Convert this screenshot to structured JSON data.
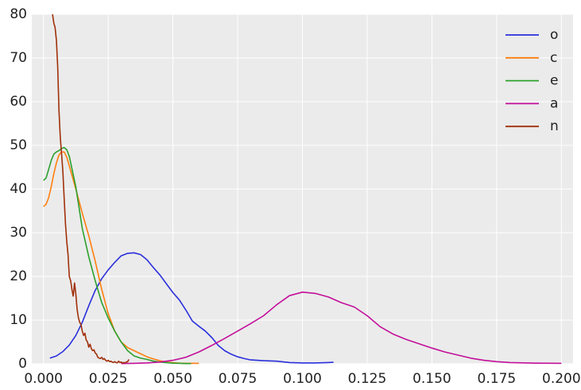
{
  "chart_data": {
    "type": "line",
    "title": "",
    "xlabel": "",
    "ylabel": "",
    "xlim": [
      -0.0045,
      0.2045
    ],
    "ylim": [
      0,
      80
    ],
    "xticks": [
      0.0,
      0.025,
      0.05,
      0.075,
      0.1,
      0.125,
      0.15,
      0.175,
      0.2
    ],
    "xtick_labels": [
      "0.000",
      "0.025",
      "0.050",
      "0.075",
      "0.100",
      "0.125",
      "0.150",
      "0.175",
      "0.200"
    ],
    "yticks": [
      0,
      10,
      20,
      30,
      40,
      50,
      60,
      70,
      80
    ],
    "ytick_labels": [
      "0",
      "10",
      "20",
      "30",
      "40",
      "50",
      "60",
      "70",
      "80"
    ],
    "grid": true,
    "legend_position": "top-right",
    "background": "#ebebeb",
    "series": [
      {
        "name": "o",
        "color": "#2a2fdc",
        "x": [
          0.0025,
          0.005,
          0.0075,
          0.01,
          0.0125,
          0.015,
          0.0175,
          0.02,
          0.0225,
          0.025,
          0.0275,
          0.03,
          0.0325,
          0.035,
          0.0375,
          0.04,
          0.0425,
          0.045,
          0.0475,
          0.05,
          0.0525,
          0.055,
          0.0575,
          0.06,
          0.0625,
          0.065,
          0.0675,
          0.07,
          0.0725,
          0.075,
          0.0775,
          0.08,
          0.085,
          0.09,
          0.095,
          0.1,
          0.105,
          0.11,
          0.112
        ],
        "y": [
          1.3,
          1.8,
          2.8,
          4.3,
          6.5,
          9.5,
          13.3,
          16.8,
          19.5,
          21.5,
          23.2,
          24.7,
          25.3,
          25.4,
          25.0,
          23.8,
          22.0,
          20.3,
          18.3,
          16.3,
          14.6,
          12.3,
          9.8,
          8.6,
          7.5,
          6.0,
          4.2,
          3.0,
          2.2,
          1.6,
          1.2,
          0.9,
          0.7,
          0.6,
          0.3,
          0.2,
          0.2,
          0.3,
          0.35
        ]
      },
      {
        "name": "c",
        "color": "#ff7f0e",
        "x": [
          0.0,
          0.001,
          0.002,
          0.003,
          0.004,
          0.005,
          0.006,
          0.007,
          0.008,
          0.009,
          0.01,
          0.0125,
          0.015,
          0.0175,
          0.02,
          0.0225,
          0.025,
          0.0275,
          0.03,
          0.0325,
          0.035,
          0.0375,
          0.04,
          0.0425,
          0.045,
          0.0475,
          0.05,
          0.0525,
          0.055,
          0.06
        ],
        "y": [
          36,
          36.5,
          38,
          40.5,
          43.5,
          46,
          47.8,
          48.5,
          48.5,
          47.3,
          45.3,
          40.0,
          34.5,
          29.3,
          23.5,
          17.0,
          11.5,
          7.5,
          5.0,
          3.7,
          3.0,
          2.3,
          1.6,
          1.1,
          0.7,
          0.4,
          0.25,
          0.15,
          0.1,
          0.1
        ]
      },
      {
        "name": "e",
        "color": "#2ca02c",
        "x": [
          0.0,
          0.001,
          0.002,
          0.003,
          0.004,
          0.005,
          0.006,
          0.007,
          0.008,
          0.009,
          0.01,
          0.0125,
          0.015,
          0.0175,
          0.02,
          0.0225,
          0.025,
          0.0275,
          0.03,
          0.0325,
          0.035,
          0.0375,
          0.04,
          0.0425,
          0.045,
          0.0475,
          0.05,
          0.0525,
          0.055,
          0.057
        ],
        "y": [
          42,
          42.5,
          44.5,
          46.5,
          48,
          48.5,
          48.8,
          49.3,
          49.5,
          49.0,
          47.5,
          40.5,
          31.0,
          24.5,
          19.0,
          14.0,
          10.5,
          7.5,
          5.0,
          3.0,
          1.8,
          1.3,
          1.0,
          0.6,
          0.4,
          0.25,
          0.15,
          0.1,
          0.05,
          0.05
        ]
      },
      {
        "name": "a",
        "color": "#c20f9a",
        "x": [
          0.03,
          0.035,
          0.04,
          0.045,
          0.05,
          0.055,
          0.06,
          0.065,
          0.07,
          0.075,
          0.08,
          0.085,
          0.09,
          0.095,
          0.1,
          0.105,
          0.11,
          0.115,
          0.12,
          0.125,
          0.13,
          0.135,
          0.14,
          0.145,
          0.15,
          0.155,
          0.16,
          0.165,
          0.17,
          0.175,
          0.18,
          0.19,
          0.2
        ],
        "y": [
          0.05,
          0.1,
          0.2,
          0.4,
          0.8,
          1.5,
          2.7,
          4.2,
          5.8,
          7.5,
          9.2,
          11.0,
          13.5,
          15.6,
          16.4,
          16.1,
          15.3,
          14.0,
          13.0,
          11.0,
          8.5,
          6.8,
          5.6,
          4.6,
          3.6,
          2.7,
          2.0,
          1.3,
          0.8,
          0.5,
          0.3,
          0.15,
          0.1
        ]
      },
      {
        "name": "n",
        "color": "#a0300a",
        "x": [
          0.0035,
          0.004,
          0.0045,
          0.005,
          0.0055,
          0.006,
          0.0065,
          0.007,
          0.0075,
          0.008,
          0.0085,
          0.009,
          0.0095,
          0.01,
          0.0105,
          0.011,
          0.0115,
          0.012,
          0.0125,
          0.013,
          0.0135,
          0.014,
          0.0145,
          0.015,
          0.0155,
          0.016,
          0.0165,
          0.017,
          0.0175,
          0.018,
          0.0185,
          0.019,
          0.0195,
          0.02,
          0.0205,
          0.021,
          0.0215,
          0.022,
          0.0225,
          0.023,
          0.0235,
          0.024,
          0.0245,
          0.025,
          0.0255,
          0.026,
          0.0265,
          0.027,
          0.0275,
          0.028,
          0.0285,
          0.029,
          0.0295,
          0.03,
          0.0305,
          0.031,
          0.0315,
          0.032,
          0.0325,
          0.033
        ],
        "y": [
          80,
          78,
          77,
          74,
          68,
          58,
          52,
          48,
          44,
          38,
          32,
          28,
          25,
          20,
          19,
          17,
          15.5,
          18.5,
          16,
          12.5,
          10.5,
          9.5,
          9.0,
          7.5,
          6.5,
          7.0,
          5.5,
          5.0,
          3.8,
          4.5,
          3.5,
          3.0,
          3.2,
          2.5,
          2.2,
          1.5,
          1.3,
          1.2,
          1.5,
          1.0,
          1.2,
          0.8,
          0.6,
          0.8,
          0.5,
          0.6,
          0.4,
          0.3,
          0.5,
          0.3,
          0.2,
          0.6,
          0.3,
          0.4,
          0.2,
          0.3,
          0.2,
          0.4,
          0.5,
          1.0
        ]
      }
    ]
  }
}
